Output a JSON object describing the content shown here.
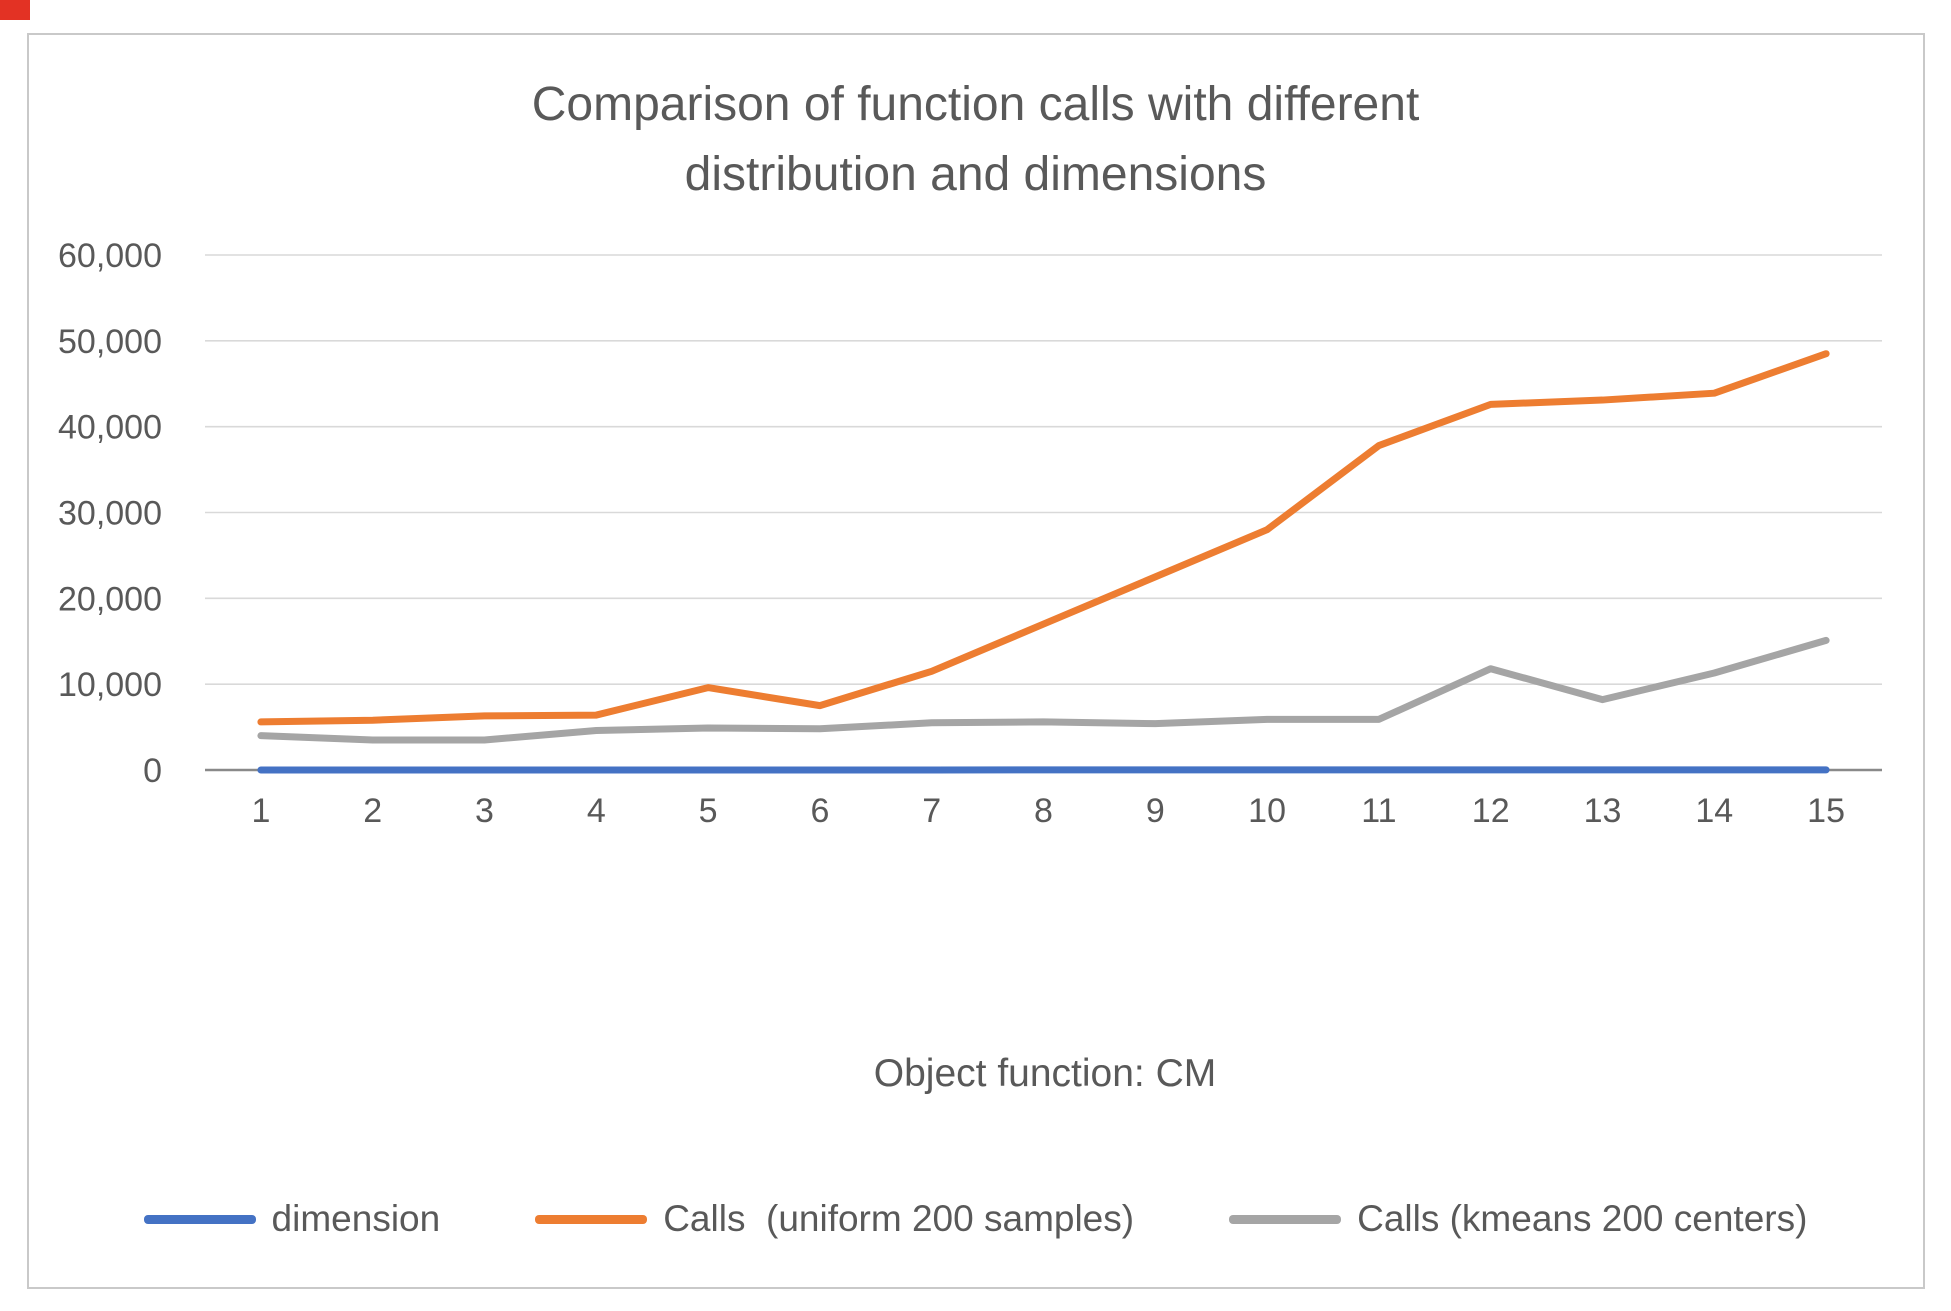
{
  "chart_data": {
    "type": "line",
    "title": "Comparison of function calls with different distribution and dimensions",
    "xlabel": "Object function: CM",
    "ylabel": "",
    "x": [
      1,
      2,
      3,
      4,
      5,
      6,
      7,
      8,
      9,
      10,
      11,
      12,
      13,
      14,
      15
    ],
    "ylim": [
      0,
      60000
    ],
    "ytick_step": 10000,
    "grid": true,
    "legend_position": "bottom",
    "gridline_color": "#d9d9d9",
    "axis_line_color": "#898989",
    "series": [
      {
        "name": "dimension",
        "color": "#4472c4",
        "values": [
          1,
          2,
          3,
          4,
          5,
          6,
          7,
          8,
          9,
          10,
          11,
          12,
          13,
          14,
          15
        ]
      },
      {
        "name": "Calls  (uniform 200 samples)",
        "color": "#ed7d31",
        "values": [
          5600,
          5800,
          6300,
          6400,
          9600,
          7500,
          11500,
          17000,
          22500,
          28000,
          37800,
          42600,
          43100,
          43900,
          48500
        ]
      },
      {
        "name": "Calls (kmeans 200 centers)",
        "color": "#a5a5a5",
        "values": [
          4000,
          3500,
          3500,
          4600,
          4900,
          4800,
          5500,
          5600,
          5400,
          5900,
          5900,
          11800,
          8200,
          11300,
          15100
        ]
      }
    ]
  }
}
